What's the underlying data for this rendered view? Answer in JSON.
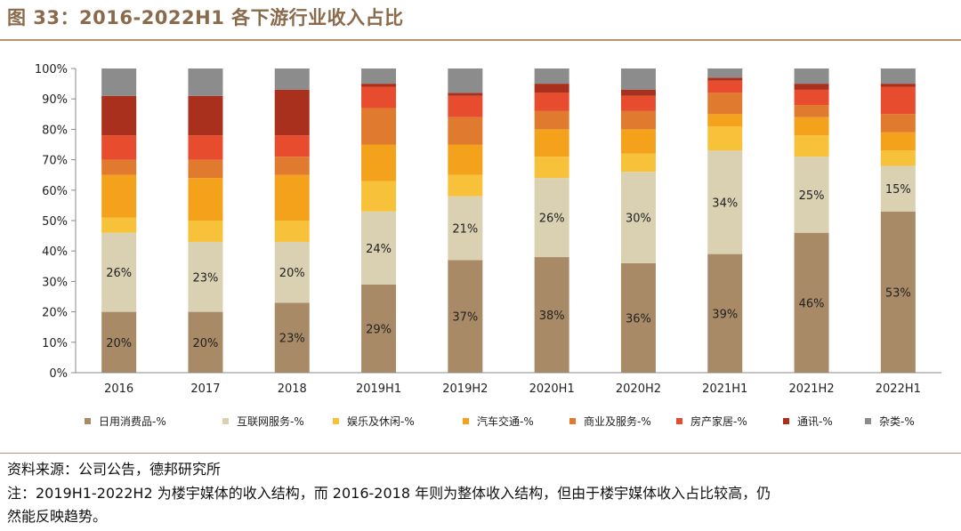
{
  "figure_title": "图 33：2016-2022H1 各下游行业收入占比",
  "source": "资料来源：公司公告，德邦研究所",
  "note_line1": "注：2019H1-2022H2 为楼宇媒体的收入结构，而 2016-2018 年则为整体收入结构，但由于楼宇媒体收入占比较高，仍",
  "note_line2": "然能反映趋势。",
  "chart_data": {
    "type": "bar",
    "stacked": true,
    "categories": [
      "2016",
      "2017",
      "2018",
      "2019H1",
      "2019H2",
      "2020H1",
      "2020H2",
      "2021H1",
      "2021H2",
      "2022H1"
    ],
    "ylim": [
      0,
      100
    ],
    "yticks": [
      "0%",
      "10%",
      "20%",
      "30%",
      "40%",
      "50%",
      "60%",
      "70%",
      "80%",
      "90%",
      "100%"
    ],
    "grid": false,
    "legend_position": "bottom",
    "series": [
      {
        "name": "日用消费品-%",
        "color": "#a98a66",
        "values": [
          20,
          20,
          23,
          29,
          37,
          38,
          36,
          39,
          46,
          53
        ],
        "labels": [
          "20%",
          "20%",
          "23%",
          "29%",
          "37%",
          "38%",
          "36%",
          "39%",
          "46%",
          "53%"
        ]
      },
      {
        "name": "互联网服务-%",
        "color": "#d9d1b2",
        "values": [
          26,
          23,
          20,
          24,
          21,
          26,
          30,
          34,
          25,
          15
        ],
        "labels": [
          "26%",
          "23%",
          "20%",
          "24%",
          "21%",
          "26%",
          "30%",
          "34%",
          "25%",
          "15%"
        ]
      },
      {
        "name": "娱乐及休闲-%",
        "color": "#f7c13a",
        "values": [
          5,
          7,
          7,
          10,
          7,
          7,
          6,
          8,
          7,
          5
        ]
      },
      {
        "name": "汽车交通-%",
        "color": "#f4a21b",
        "values": [
          14,
          14,
          15,
          12,
          10,
          9,
          8,
          4,
          6,
          6
        ]
      },
      {
        "name": "商业及服务-%",
        "color": "#e07a2e",
        "values": [
          5,
          6,
          6,
          12,
          9,
          6,
          6,
          7,
          4,
          6
        ]
      },
      {
        "name": "房产家居-%",
        "color": "#e84c2e",
        "values": [
          8,
          8,
          7,
          7,
          7,
          6,
          5,
          4,
          5,
          9
        ]
      },
      {
        "name": "通讯-%",
        "color": "#a9301c",
        "values": [
          13,
          13,
          15,
          1,
          1,
          3,
          2,
          1,
          2,
          1
        ]
      },
      {
        "name": "杂类-%",
        "color": "#8c8c8c",
        "values": [
          9,
          9,
          7,
          5,
          8,
          5,
          7,
          3,
          5,
          5
        ]
      }
    ]
  }
}
